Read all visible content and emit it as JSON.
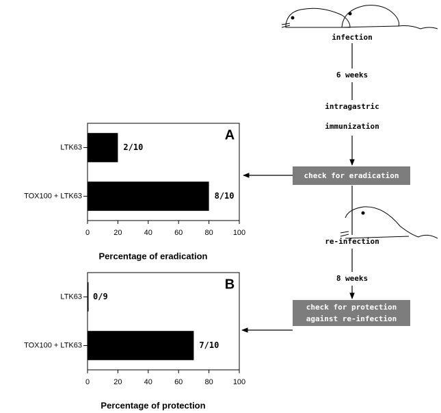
{
  "chart_data": [
    {
      "type": "bar",
      "orientation": "horizontal",
      "panel": "A",
      "categories": [
        "LTK63",
        "TOX100 + LTK63"
      ],
      "values": [
        20,
        80
      ],
      "value_labels": [
        "2/10",
        "8/10"
      ],
      "color": "#000000",
      "xlim": [
        0,
        100
      ],
      "xticks": [
        0,
        20,
        40,
        60,
        80,
        100
      ],
      "xlabel": "Percentage of eradication"
    },
    {
      "type": "bar",
      "orientation": "horizontal",
      "panel": "B",
      "categories": [
        "LTK63",
        "TOX100 + LTK63"
      ],
      "values": [
        0,
        70
      ],
      "value_labels": [
        "0/9",
        "7/10"
      ],
      "color": "#000000",
      "xlim": [
        0,
        100
      ],
      "xticks": [
        0,
        20,
        40,
        60,
        80,
        100
      ],
      "xlabel": "Percentage of protection"
    }
  ],
  "diagram": {
    "infection": "infection",
    "interval_1": "6 weeks",
    "immunization": [
      "intragastric",
      "immunization"
    ],
    "check_1": "check for eradication",
    "reinfection": "re-infection",
    "interval_2": "8 weeks",
    "check_2": [
      "check for protection",
      "against re-infection"
    ]
  }
}
